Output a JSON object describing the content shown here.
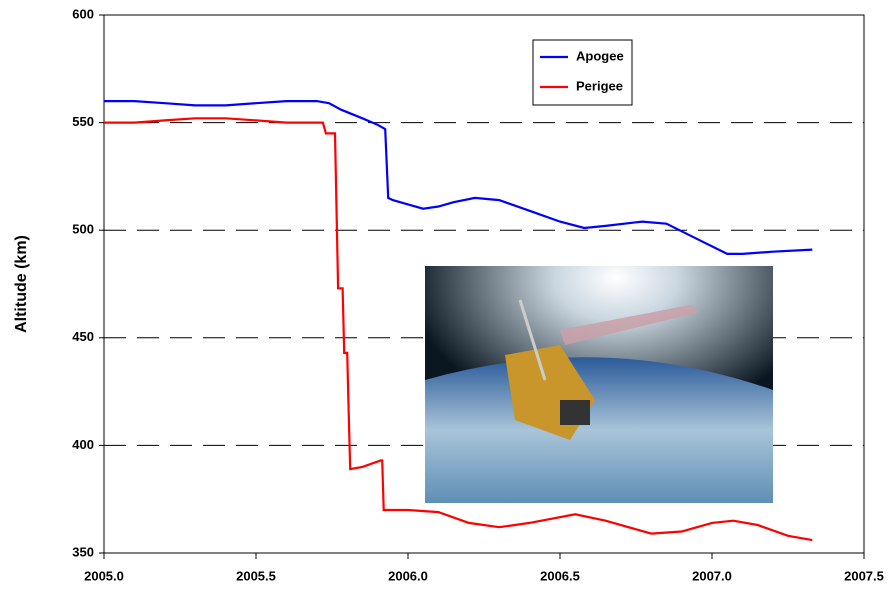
{
  "chart_data": {
    "type": "line",
    "y_label": "Altitude (km)",
    "xlim": [
      2005.0,
      2007.5
    ],
    "xticks": [
      {
        "value": 2005.0,
        "label": "2005.0"
      },
      {
        "value": 2005.5,
        "label": "2005.5"
      },
      {
        "value": 2006.0,
        "label": "2006.0"
      },
      {
        "value": 2006.5,
        "label": "2006.5"
      },
      {
        "value": 2007.0,
        "label": "2007.0"
      },
      {
        "value": 2007.5,
        "label": "2007.5"
      }
    ],
    "ylim": [
      350,
      600
    ],
    "yticks": [
      350,
      400,
      450,
      500,
      550,
      600
    ],
    "grid": true,
    "series": [
      {
        "name": "Apogee",
        "color": "#0000ff",
        "x": [
          2005.0,
          2005.1,
          2005.2,
          2005.3,
          2005.4,
          2005.5,
          2005.6,
          2005.7,
          2005.74,
          2005.78,
          2005.85,
          2005.9,
          2005.925,
          2005.935,
          2005.95,
          2006.0,
          2006.05,
          2006.1,
          2006.15,
          2006.22,
          2006.3,
          2006.4,
          2006.5,
          2006.58,
          2006.65,
          2006.77,
          2006.85,
          2006.95,
          2007.05,
          2007.1,
          2007.2,
          2007.33
        ],
        "values": [
          560,
          560,
          559,
          558,
          558,
          559,
          560,
          560,
          559,
          556,
          552,
          549,
          547,
          515,
          514,
          512,
          510,
          511,
          513,
          515,
          514,
          509,
          504,
          501,
          502,
          504,
          503,
          496,
          489,
          489,
          490,
          491
        ]
      },
      {
        "name": "Perigee",
        "color": "#ff0000",
        "x": [
          2005.0,
          2005.1,
          2005.2,
          2005.3,
          2005.4,
          2005.5,
          2005.6,
          2005.72,
          2005.73,
          2005.76,
          2005.77,
          2005.785,
          2005.79,
          2005.8,
          2005.805,
          2005.81,
          2005.85,
          2005.91,
          2005.915,
          2005.92,
          2006.0,
          2006.1,
          2006.2,
          2006.3,
          2006.4,
          2006.55,
          2006.65,
          2006.8,
          2006.9,
          2007.0,
          2007.07,
          2007.15,
          2007.25,
          2007.33
        ],
        "values": [
          550,
          550,
          551,
          552,
          552,
          551,
          550,
          550,
          545,
          545,
          473,
          473,
          443,
          443,
          415,
          389,
          390,
          393,
          393,
          370,
          370,
          369,
          364,
          362,
          364,
          368,
          365,
          359,
          360,
          364,
          365,
          363,
          358,
          356
        ]
      }
    ]
  }
}
